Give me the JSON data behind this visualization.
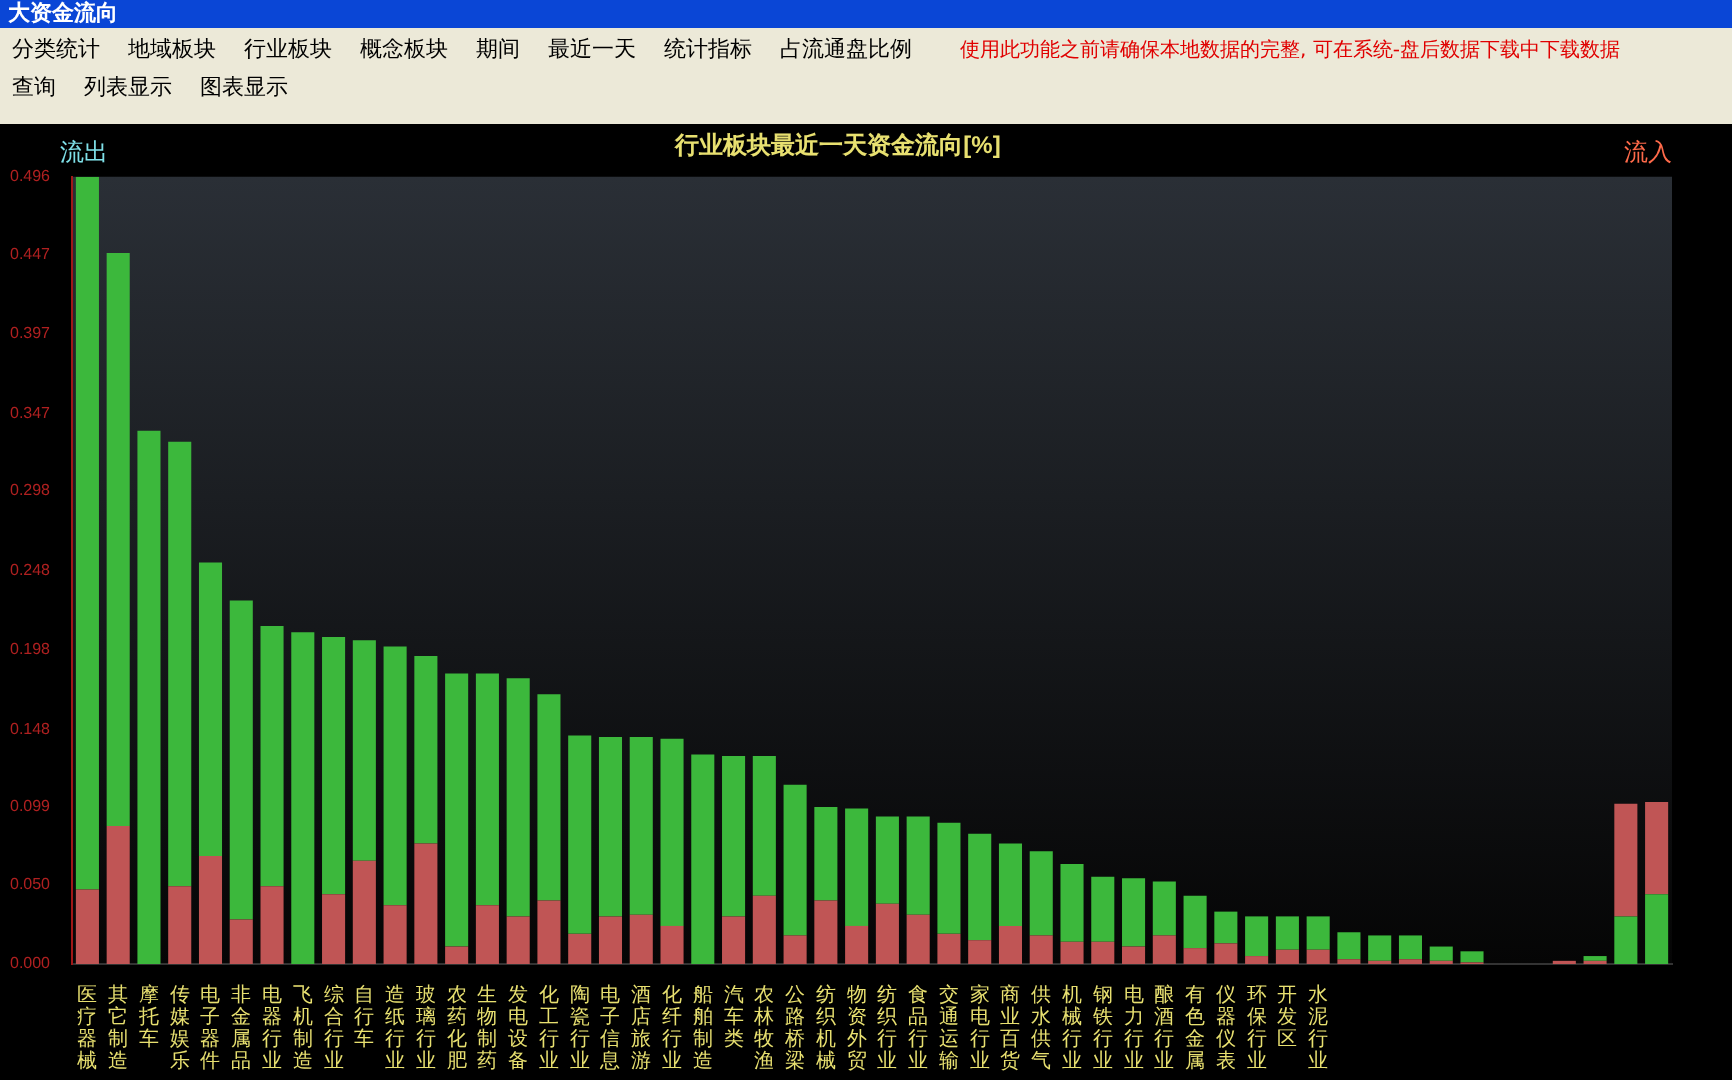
{
  "chart_data": {
    "type": "bar",
    "stacked": true,
    "title": "行业板块最近一天资金流向[%]",
    "annotations": [
      "大资金流向",
      "分类统计",
      "地域板块",
      "行业板块",
      "概念板块",
      "使用此功能之前请确保本地数据的完整, 可在系统-盘后数据下载中下载数据",
      "期间",
      "最近一天",
      "统计指标",
      "占流通盘比例",
      "查询",
      "列表显示",
      "图表显示",
      "流出",
      "流入"
    ],
    "categories": [
      "医疗器械",
      "其它制造",
      "摩托车",
      "传媒娱乐",
      "电子器件",
      "非金属品",
      "电器行业",
      "飞机制造",
      "综合行业",
      "自行车",
      "造纸行业",
      "玻璃行业",
      "农药化肥",
      "生物制药",
      "发电设备",
      "化工行业",
      "陶瓷行业",
      "电子信息",
      "酒店旅游",
      "化纤行业",
      "船舶制造",
      "汽车类",
      "农林牧渔",
      "公路桥梁",
      "纺织机械",
      "物资外贸",
      "纺织行业",
      "食品行业",
      "交通运输",
      "家电行业",
      "商业百货",
      "供水供气",
      "机械行业",
      "钢铁行业",
      "电力行业",
      "酿酒行业",
      "有色金属",
      "仪器仪表",
      "环保行业",
      "开发区",
      "水泥行业",
      null,
      null,
      null,
      null,
      null,
      null,
      null,
      null,
      null,
      null,
      null
    ],
    "series": [
      {
        "color": "#c05555",
        "values": [
          0.047,
          0.087,
          0,
          0.049,
          0.068,
          0.028,
          0.049,
          0,
          0.044,
          0.065,
          0.037,
          0.076,
          0.011,
          0.037,
          0.03,
          0.04,
          0.019,
          0.03,
          0.031,
          0.024,
          0,
          0.03,
          0.043,
          0.018,
          0.04,
          0.024,
          0.038,
          0.031,
          0.019,
          0.015,
          0.024,
          0.018,
          0.014,
          0.014,
          0.011,
          0.018,
          0.01,
          0.013,
          0.005,
          0.009,
          0.009,
          0.003,
          0.002,
          0.003,
          0.002,
          0.001,
          0,
          0,
          0.002,
          0.002,
          0,
          0
        ]
      },
      {
        "color": "#3cb83c",
        "values": [
          0.449,
          0.361,
          0.336,
          0.28,
          0.185,
          0.201,
          0.164,
          0.209,
          0.162,
          0.139,
          0.163,
          0.118,
          0.172,
          0.146,
          0.15,
          0.13,
          0.125,
          0.113,
          0.112,
          0.118,
          0.132,
          0.101,
          0.088,
          0.095,
          0.059,
          0.074,
          0.055,
          0.062,
          0.07,
          0.067,
          0.052,
          0.053,
          0.049,
          0.041,
          0.043,
          0.034,
          0.033,
          0.02,
          0.025,
          0.021,
          0.021,
          0.017,
          0.016,
          0.015,
          0.009,
          0.007,
          0,
          0,
          0,
          0.003,
          0.03,
          0.044
        ]
      },
      {
        "color": "#c05555",
        "values": [
          null,
          null,
          null,
          null,
          null,
          null,
          null,
          null,
          null,
          null,
          null,
          null,
          null,
          null,
          null,
          null,
          null,
          null,
          null,
          null,
          null,
          null,
          null,
          null,
          null,
          null,
          null,
          null,
          null,
          null,
          null,
          null,
          null,
          null,
          null,
          null,
          null,
          null,
          null,
          null,
          null,
          null,
          null,
          null,
          null,
          null,
          null,
          null,
          null,
          null,
          0.071,
          0.058
        ]
      }
    ],
    "ylim": [
      0,
      0.496
    ],
    "yticks": [
      {
        "value": 0,
        "label": "0.000"
      },
      {
        "value": 0.05,
        "label": "0.050"
      },
      {
        "value": 0.099,
        "label": "0.099"
      },
      {
        "value": 0.148,
        "label": "0.148"
      },
      {
        "value": 0.198,
        "label": "0.198"
      },
      {
        "value": 0.248,
        "label": "0.248"
      },
      {
        "value": 0.298,
        "label": "0.298"
      },
      {
        "value": 0.347,
        "label": "0.347"
      },
      {
        "value": 0.397,
        "label": "0.397"
      },
      {
        "value": 0.447,
        "label": "0.447"
      },
      {
        "value": 0.496,
        "label": "0.496"
      }
    ]
  }
}
